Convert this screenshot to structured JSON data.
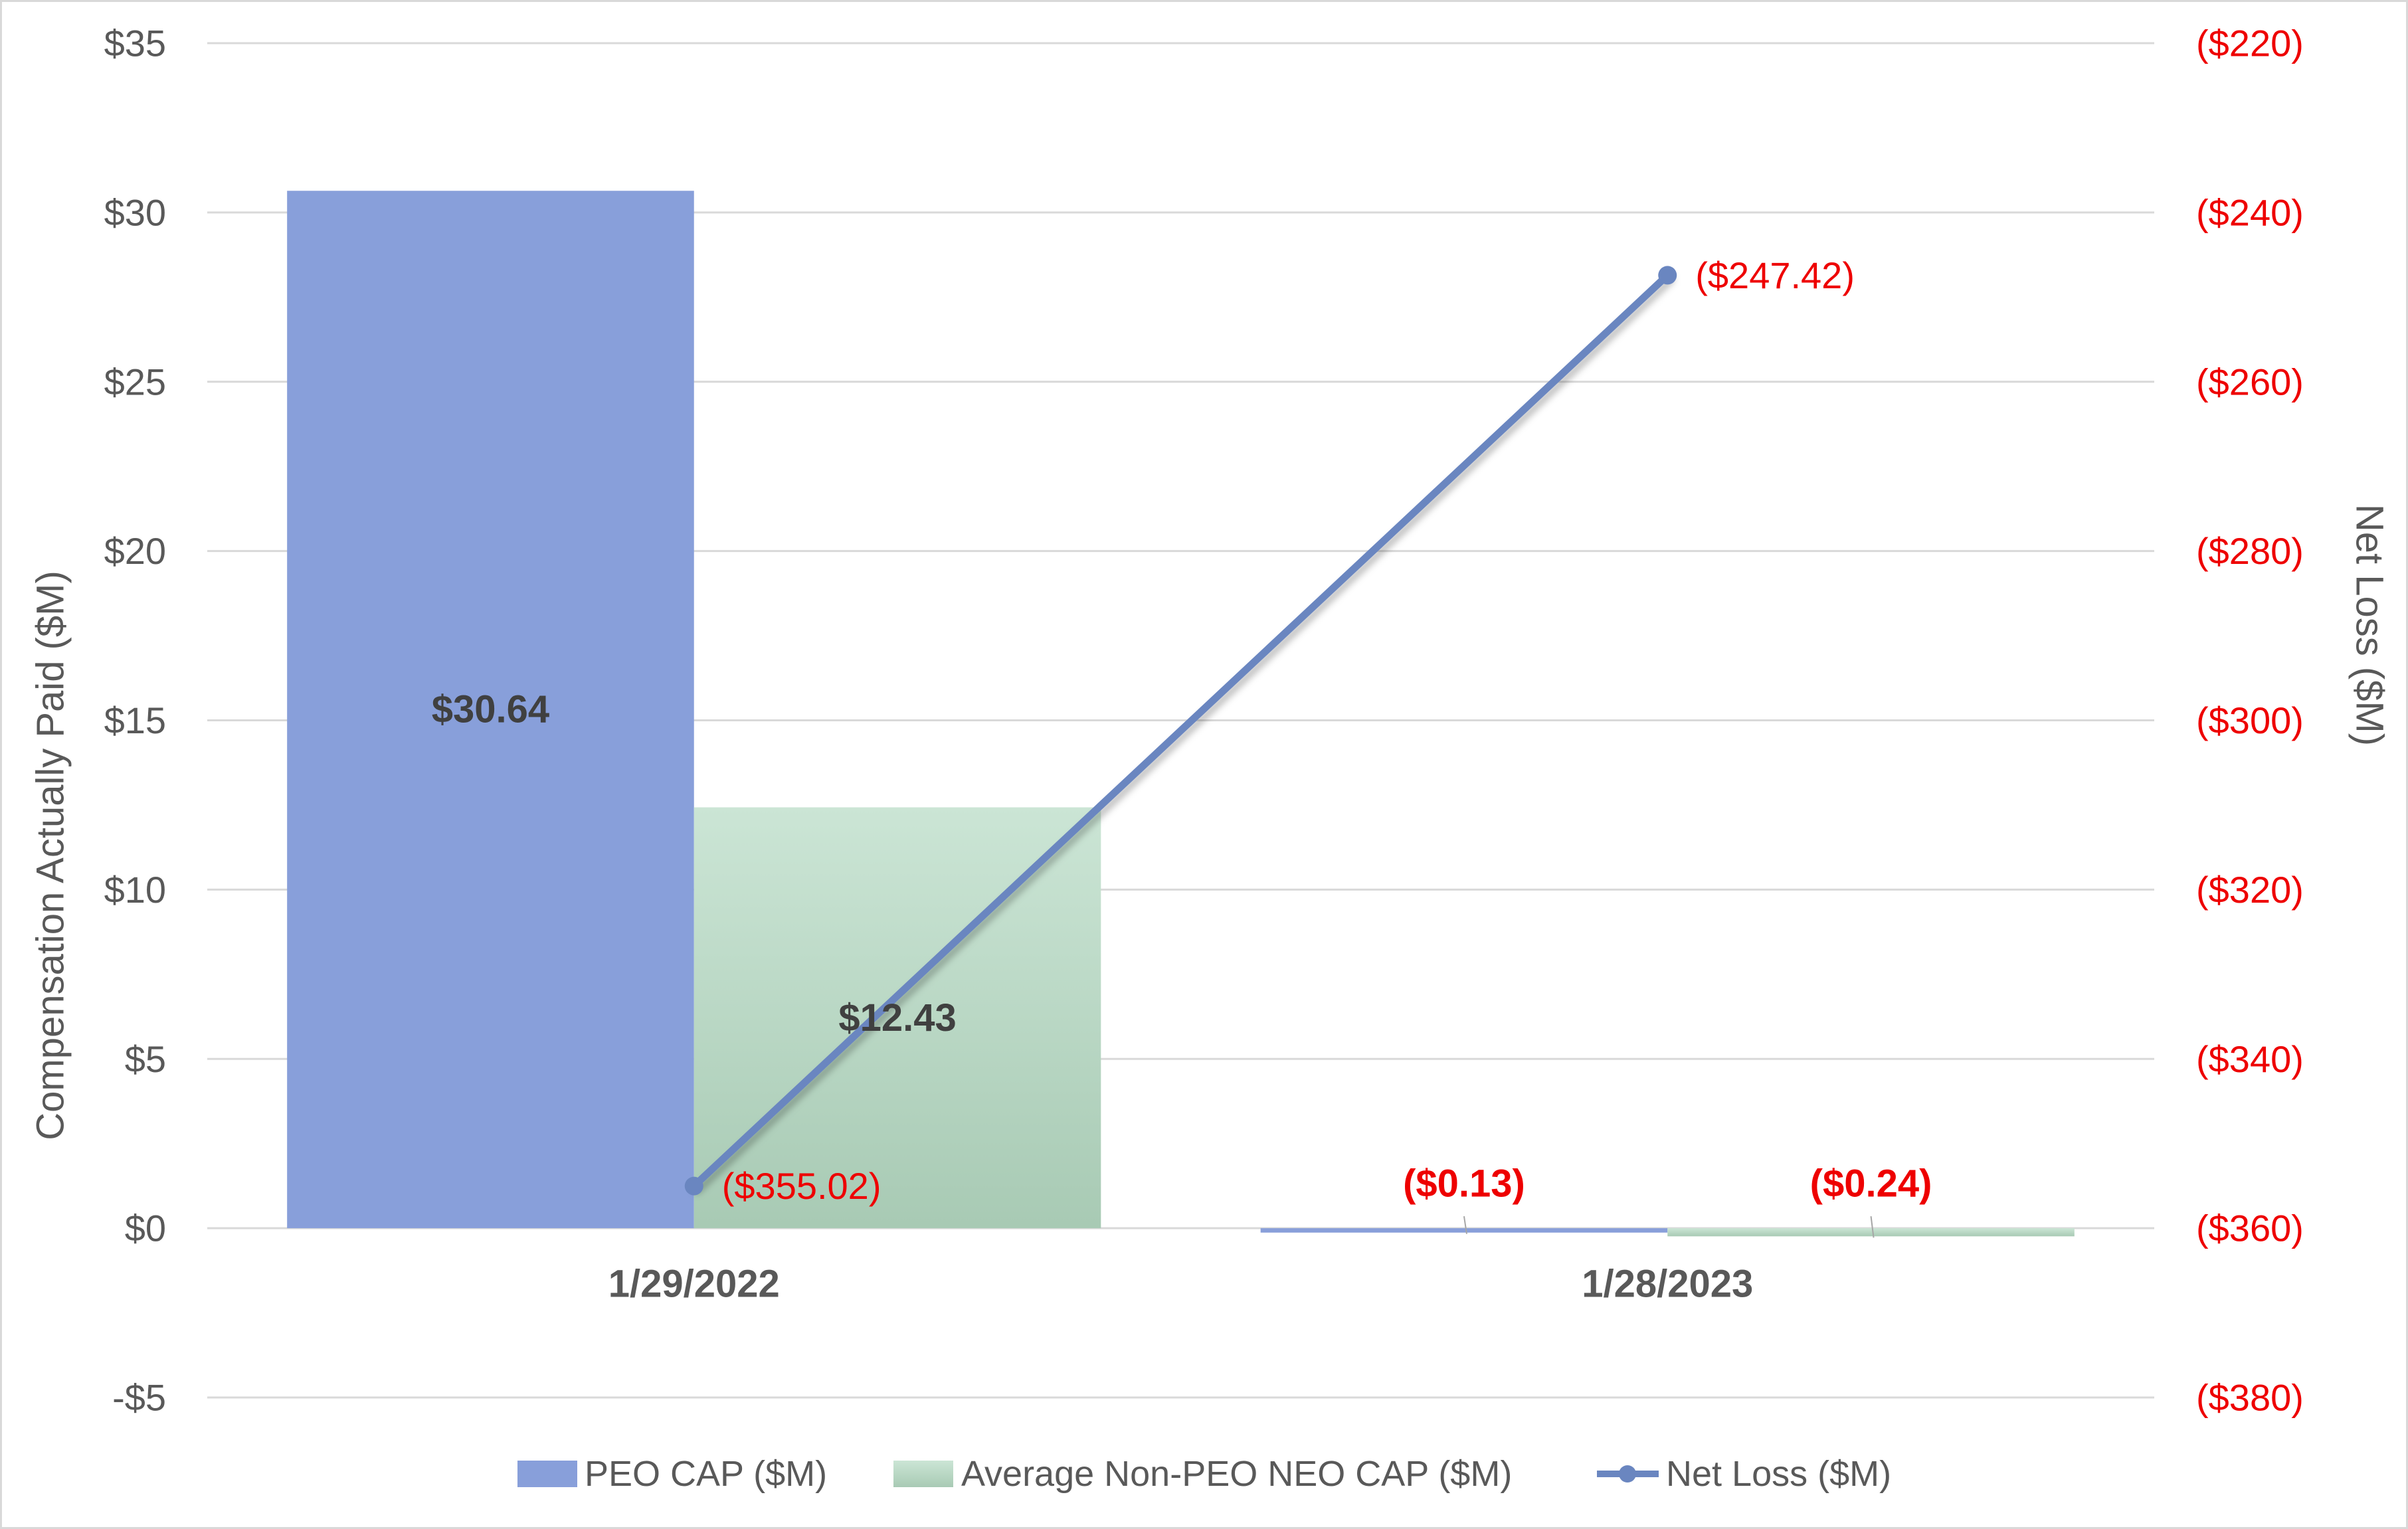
{
  "chart_data": {
    "type": "bar",
    "categories": [
      "1/29/2022",
      "1/28/2023"
    ],
    "series": [
      {
        "name": "PEO CAP ($M)",
        "type": "bar",
        "axis": "left",
        "values": [
          30.64,
          -0.13
        ],
        "data_labels": [
          "$30.64",
          "($0.13)"
        ],
        "color": "#889fda"
      },
      {
        "name": "Average Non-PEO NEO CAP ($M)",
        "type": "bar",
        "axis": "left",
        "values": [
          12.43,
          -0.24
        ],
        "data_labels": [
          "$12.43",
          "($0.24)"
        ],
        "color": "#b9d9c5",
        "gradient": [
          "#cbe5d5",
          "#a8cab4"
        ]
      },
      {
        "name": "Net Loss ($M)",
        "type": "line",
        "axis": "right",
        "values": [
          -355.02,
          -247.42
        ],
        "data_labels": [
          "($355.02)",
          "($247.42)"
        ],
        "color": "#6a86c0"
      }
    ],
    "y_left": {
      "label": "Compensation Actually Paid ($M)",
      "ylim": [
        -5,
        35
      ],
      "ticks": [
        35,
        30,
        25,
        20,
        15,
        10,
        5,
        0,
        -5
      ],
      "tick_labels": [
        "$35",
        "$30",
        "$25",
        "$20",
        "$15",
        "$10",
        "$5",
        "$0",
        "-$5"
      ]
    },
    "y_right": {
      "label": "Net Loss ($M)",
      "ylim": [
        -380,
        -220
      ],
      "ticks": [
        -220,
        -240,
        -260,
        -280,
        -300,
        -320,
        -340,
        -360,
        -380
      ],
      "tick_labels": [
        "($220)",
        "($240)",
        "($260)",
        "($280)",
        "($300)",
        "($320)",
        "($340)",
        "($360)",
        "($380)"
      ]
    },
    "grid": true,
    "legend": "bottom",
    "colors": {
      "text": "#595959",
      "data_label": "#404040",
      "negative": "#ee0000",
      "grid": "#d9d9d9"
    }
  }
}
